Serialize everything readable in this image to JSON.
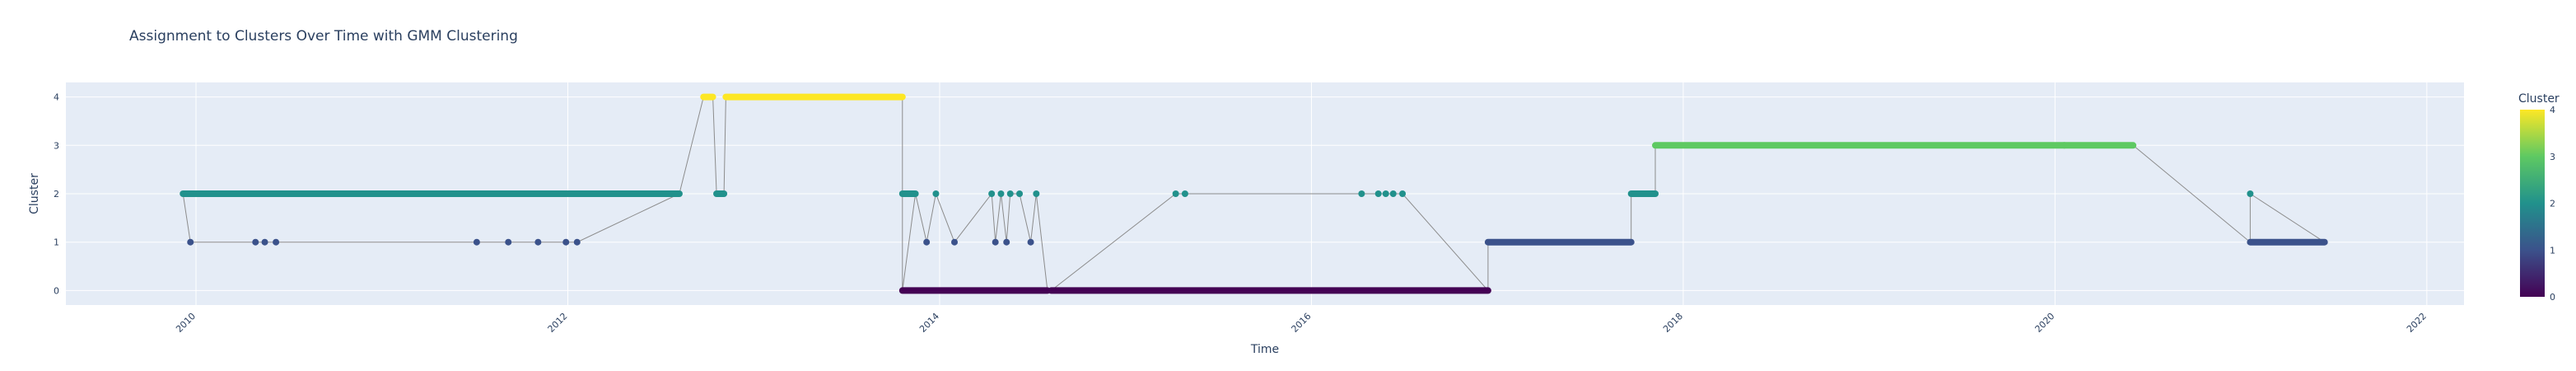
{
  "chart_data": {
    "type": "scatter",
    "title": "Assignment to Clusters Over Time with GMM Clustering",
    "xlabel": "Time",
    "ylabel": "Cluster",
    "xlim": [
      2009.3,
      2022.2
    ],
    "ylim": [
      -0.3,
      4.3
    ],
    "x_ticks": [
      2010,
      2012,
      2014,
      2016,
      2018,
      2020,
      2022
    ],
    "y_ticks": [
      0,
      1,
      2,
      3,
      4
    ],
    "grid": true,
    "colorbar": {
      "title": "Cluster",
      "range": [
        0,
        4
      ],
      "ticks": [
        0,
        1,
        2,
        3,
        4
      ],
      "colorscale": "Viridis"
    },
    "colors": {
      "plot_bg": "#e5ecf6",
      "grid": "#ffffff",
      "line": "#8c8c8c",
      "cluster_0": "#440154",
      "cluster_1": "#3b528b",
      "cluster_2": "#21918c",
      "cluster_3": "#5ec962",
      "cluster_4": "#fde725"
    },
    "segments": [
      {
        "start": 2009.93,
        "end": 2012.6,
        "cluster": 2
      },
      {
        "start": 2012.73,
        "end": 2012.78,
        "cluster": 4
      },
      {
        "start": 2012.8,
        "end": 2012.84,
        "cluster": 2
      },
      {
        "start": 2012.85,
        "end": 2013.8,
        "cluster": 4
      },
      {
        "start": 2013.8,
        "end": 2013.87,
        "cluster": 2
      },
      {
        "start": 2013.8,
        "end": 2014.58,
        "cluster": 0
      },
      {
        "start": 2014.6,
        "end": 2016.95,
        "cluster": 0
      },
      {
        "start": 2016.95,
        "end": 2017.72,
        "cluster": 1
      },
      {
        "start": 2017.72,
        "end": 2017.85,
        "cluster": 2
      },
      {
        "start": 2017.85,
        "end": 2020.05,
        "cluster": 3
      },
      {
        "start": 2020.05,
        "end": 2020.42,
        "cluster": 3
      },
      {
        "start": 2021.05,
        "end": 2021.45,
        "cluster": 1
      }
    ],
    "points": [
      {
        "x": 2009.97,
        "y": 1
      },
      {
        "x": 2010.32,
        "y": 1
      },
      {
        "x": 2010.37,
        "y": 1
      },
      {
        "x": 2010.43,
        "y": 1
      },
      {
        "x": 2011.51,
        "y": 1
      },
      {
        "x": 2011.68,
        "y": 1
      },
      {
        "x": 2011.84,
        "y": 1
      },
      {
        "x": 2011.99,
        "y": 1
      },
      {
        "x": 2012.05,
        "y": 1
      },
      {
        "x": 2013.93,
        "y": 1
      },
      {
        "x": 2013.98,
        "y": 2
      },
      {
        "x": 2014.08,
        "y": 1
      },
      {
        "x": 2014.28,
        "y": 2
      },
      {
        "x": 2014.3,
        "y": 1
      },
      {
        "x": 2014.33,
        "y": 2
      },
      {
        "x": 2014.36,
        "y": 1
      },
      {
        "x": 2014.38,
        "y": 2
      },
      {
        "x": 2014.43,
        "y": 2
      },
      {
        "x": 2014.49,
        "y": 1
      },
      {
        "x": 2014.52,
        "y": 2
      },
      {
        "x": 2015.27,
        "y": 2
      },
      {
        "x": 2015.32,
        "y": 2
      },
      {
        "x": 2016.27,
        "y": 2
      },
      {
        "x": 2016.36,
        "y": 2
      },
      {
        "x": 2016.4,
        "y": 2
      },
      {
        "x": 2016.44,
        "y": 2
      },
      {
        "x": 2016.49,
        "y": 2
      },
      {
        "x": 2021.05,
        "y": 2
      }
    ]
  }
}
